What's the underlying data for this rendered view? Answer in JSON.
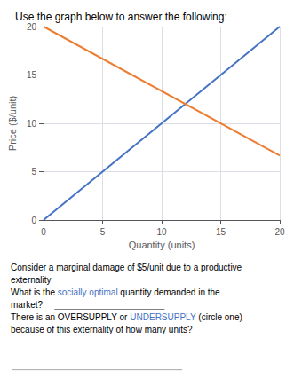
{
  "chart_data": {
    "type": "line",
    "title": "Use the graph below to answer the following:",
    "xlabel": "Quantity (units)",
    "ylabel": "Price ($/unit)",
    "x": [
      0,
      20
    ],
    "series": [
      {
        "color": "#4472C4",
        "values": [
          0,
          20
        ]
      },
      {
        "color": "#ED7D31",
        "values": [
          20,
          6.667
        ]
      }
    ],
    "xlim": [
      0,
      20
    ],
    "ylim": [
      0,
      20
    ],
    "xticks": [
      0,
      5,
      10,
      15,
      20
    ],
    "yticks": [
      0,
      5,
      10,
      15,
      20
    ],
    "grid": true,
    "annotations": [
      [
        {
          "text": "Consider a marginal damage of $5/unit due to a productive"
        }
      ],
      [
        {
          "text": "externality"
        }
      ],
      [
        {
          "text": "What is the "
        },
        {
          "text": "socially optimal",
          "color": "#4472C4"
        },
        {
          "text": " quantity demanded in the"
        }
      ],
      [
        {
          "text": "market?"
        }
      ],
      [
        {
          "text": "There is an OVERSUPPLY or "
        },
        {
          "text": "UNDERSUPPLY",
          "color": "#4472C4"
        },
        {
          "text": " (circle one)"
        }
      ],
      [
        {
          "text": "because of this externality of how many units?"
        }
      ]
    ]
  }
}
